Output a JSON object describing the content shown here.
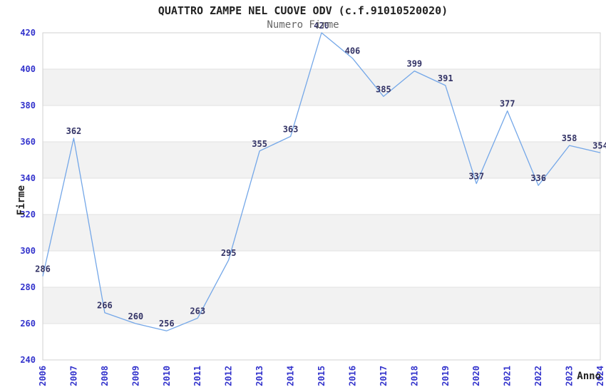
{
  "chart_data": {
    "type": "line",
    "title": "QUATTRO ZAMPE NEL CUOVE ODV (c.f.91010520020)",
    "subtitle": "Numero Firme",
    "xlabel": "Anno",
    "ylabel": "Firme",
    "categories": [
      "2006",
      "2007",
      "2008",
      "2009",
      "2010",
      "2011",
      "2012",
      "2013",
      "2014",
      "2015",
      "2016",
      "2017",
      "2018",
      "2019",
      "2020",
      "2021",
      "2022",
      "2023",
      "2024"
    ],
    "values": [
      286,
      362,
      266,
      260,
      256,
      263,
      295,
      355,
      363,
      420,
      406,
      385,
      399,
      391,
      337,
      377,
      336,
      358,
      354
    ],
    "ylim": [
      240,
      420
    ],
    "ytick_step": 20,
    "grid": "horizontal-only",
    "legend": "none",
    "data_labels": "shown-above-points"
  },
  "colors": {
    "line": "#74a7e8",
    "tick_label": "#3333cc",
    "data_label": "#333366",
    "band": "#f2f2f2",
    "gridline": "#e2e2e2",
    "plot_border": "#d0d0d0",
    "title": "#222222",
    "subtitle": "#666666",
    "axis_title": "#222222",
    "background": "#ffffff"
  }
}
